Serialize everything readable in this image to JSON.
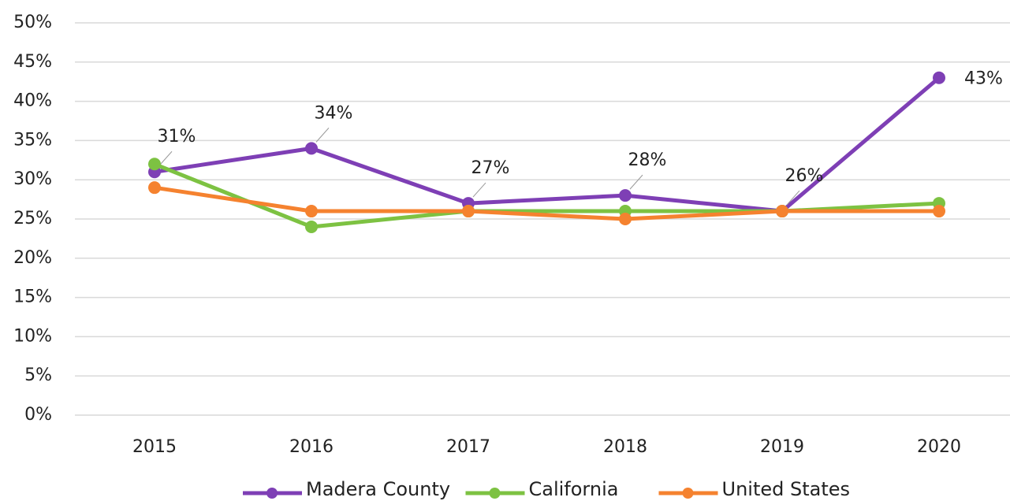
{
  "chart_data": {
    "type": "line",
    "categories": [
      "2015",
      "2016",
      "2017",
      "2018",
      "2019",
      "2020"
    ],
    "series": [
      {
        "name": "Madera County",
        "color": "#7e3fb5",
        "values": [
          31,
          34,
          27,
          28,
          26,
          43
        ],
        "value_labels": [
          "31%",
          "34%",
          "27%",
          "28%",
          "26%",
          "43%"
        ]
      },
      {
        "name": "California",
        "color": "#7dc242",
        "values": [
          32,
          24,
          26,
          26,
          26,
          27
        ]
      },
      {
        "name": "United States",
        "color": "#f5822f",
        "values": [
          29,
          26,
          26,
          25,
          26,
          26
        ]
      }
    ],
    "ylim": [
      0,
      50
    ],
    "yticks": [
      {
        "value": 0,
        "label": "0%"
      },
      {
        "value": 5,
        "label": "5%"
      },
      {
        "value": 10,
        "label": "10%"
      },
      {
        "value": 15,
        "label": "15%"
      },
      {
        "value": 20,
        "label": "20%"
      },
      {
        "value": 25,
        "label": "25%"
      },
      {
        "value": 30,
        "label": "30%"
      },
      {
        "value": 35,
        "label": "35%"
      },
      {
        "value": 40,
        "label": "40%"
      },
      {
        "value": 45,
        "label": "45%"
      },
      {
        "value": 50,
        "label": "50%"
      }
    ],
    "grid": true,
    "legend": "bottom"
  }
}
